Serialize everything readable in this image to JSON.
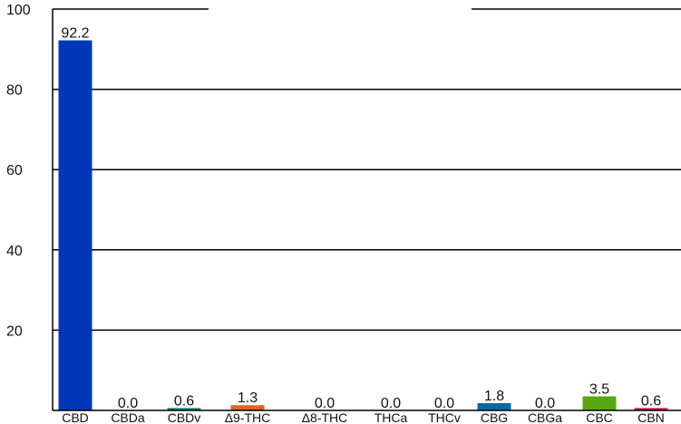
{
  "chart_data": {
    "type": "bar",
    "categories": [
      "CBD",
      "CBDa",
      "CBDv",
      "Δ9-THC",
      "Δ8-THC",
      "THCa",
      "THCv",
      "CBG",
      "CBGa",
      "CBC",
      "CBN"
    ],
    "values": [
      92.2,
      0.0,
      0.6,
      1.3,
      0.0,
      0.0,
      0.0,
      1.8,
      0.0,
      3.5,
      0.6
    ],
    "value_labels": [
      "92.2",
      "0.0",
      "0.6",
      "1.3",
      "0.0",
      "0.0",
      "0.0",
      "1.8",
      "0.0",
      "3.5",
      "0.6"
    ],
    "colors": [
      "#0037b8",
      "#0f5a8c",
      "#168078",
      "#e0651c",
      "#7a7a7a",
      "#7a7a7a",
      "#7a7a7a",
      "#0a6aa0",
      "#7a7a7a",
      "#5aa610",
      "#c0204a"
    ],
    "yticks": [
      20,
      40,
      60,
      80,
      100
    ],
    "ylim": [
      0,
      100
    ],
    "grid": true,
    "title": "",
    "xlabel": "",
    "ylabel": ""
  }
}
